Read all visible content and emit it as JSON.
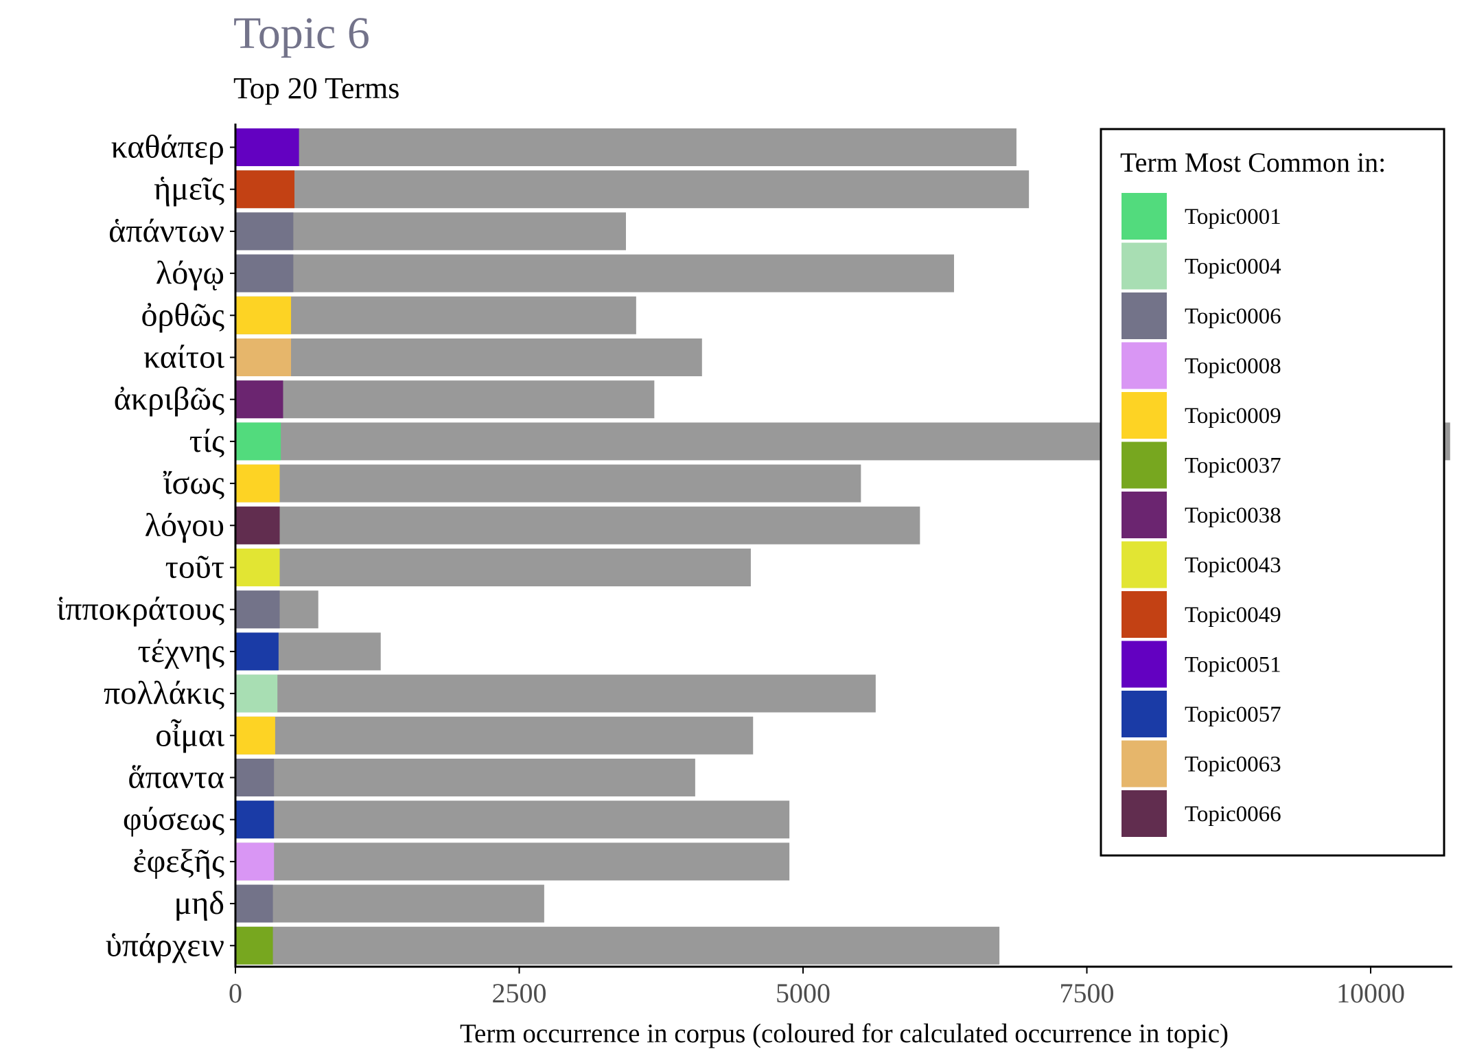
{
  "chart_data": {
    "type": "bar",
    "orientation": "horizontal",
    "title": "Topic 6",
    "subtitle": "Top 20 Terms",
    "xlabel": "Term occurrence in corpus (coloured for calculated occurrence in topic)",
    "ylabel": "",
    "xlim": [
      0,
      10700
    ],
    "x_ticks": [
      0,
      2500,
      5000,
      7500,
      10000
    ],
    "x_tick_labels": [
      "0",
      "2500",
      "5000",
      "7500",
      "10000"
    ],
    "grid": false,
    "legend": {
      "title": "Term Most Common in:",
      "placement": "top-right",
      "entries": [
        {
          "label": "Topic0001",
          "color": "#52DB7D"
        },
        {
          "label": "Topic0004",
          "color": "#A8DEB3"
        },
        {
          "label": "Topic0006",
          "color": "#737389"
        },
        {
          "label": "Topic0008",
          "color": "#D996F4"
        },
        {
          "label": "Topic0009",
          "color": "#FDD324"
        },
        {
          "label": "Topic0037",
          "color": "#77A71F"
        },
        {
          "label": "Topic0038",
          "color": "#6B2570"
        },
        {
          "label": "Topic0043",
          "color": "#E2E533"
        },
        {
          "label": "Topic0049",
          "color": "#C34114"
        },
        {
          "label": "Topic0051",
          "color": "#6301C1"
        },
        {
          "label": "Topic0057",
          "color": "#1A3BA6"
        },
        {
          "label": "Topic0063",
          "color": "#E6B66B"
        },
        {
          "label": "Topic0066",
          "color": "#612D4F"
        }
      ]
    },
    "series": [
      {
        "name": "corpus",
        "color": "#999999"
      }
    ],
    "categories": [
      "καθάπερ",
      "ἡμεῖς",
      "ἁπάντων",
      "λόγῳ",
      "ὀρθῶς",
      "καίτοι",
      "ἀκριβῶς",
      "τίς",
      "ἴσως",
      "λόγου",
      "τοῦτ",
      "ἱπποκράτους",
      "τέχνης",
      "πολλάκις",
      "οἶμαι",
      "ἅπαντα",
      "φύσεως",
      "ἐφεξῆς",
      "μηδ",
      "ὑπάρχειν"
    ],
    "bars": [
      {
        "term": "καθάπερ",
        "corpus": 6880,
        "topic": 560,
        "topic_label": "Topic0051"
      },
      {
        "term": "ἡμεῖς",
        "corpus": 6990,
        "topic": 520,
        "topic_label": "Topic0049"
      },
      {
        "term": "ἁπάντων",
        "corpus": 3440,
        "topic": 510,
        "topic_label": "Topic0006"
      },
      {
        "term": "λόγῳ",
        "corpus": 6330,
        "topic": 510,
        "topic_label": "Topic0006"
      },
      {
        "term": "ὀρθῶς",
        "corpus": 3530,
        "topic": 490,
        "topic_label": "Topic0009"
      },
      {
        "term": "καίτοι",
        "corpus": 4110,
        "topic": 490,
        "topic_label": "Topic0063"
      },
      {
        "term": "ἀκριβῶς",
        "corpus": 3690,
        "topic": 420,
        "topic_label": "Topic0038"
      },
      {
        "term": "τίς",
        "corpus": 10700,
        "topic": 400,
        "topic_label": "Topic0001"
      },
      {
        "term": "ἴσως",
        "corpus": 5510,
        "topic": 390,
        "topic_label": "Topic0009"
      },
      {
        "term": "λόγου",
        "corpus": 6030,
        "topic": 390,
        "topic_label": "Topic0066"
      },
      {
        "term": "τοῦτ",
        "corpus": 4540,
        "topic": 390,
        "topic_label": "Topic0043"
      },
      {
        "term": "ἱπποκράτους",
        "corpus": 730,
        "topic": 390,
        "topic_label": "Topic0006"
      },
      {
        "term": "τέχνης",
        "corpus": 1280,
        "topic": 380,
        "topic_label": "Topic0057"
      },
      {
        "term": "πολλάκις",
        "corpus": 5640,
        "topic": 370,
        "topic_label": "Topic0004"
      },
      {
        "term": "οἶμαι",
        "corpus": 4560,
        "topic": 350,
        "topic_label": "Topic0009"
      },
      {
        "term": "ἅπαντα",
        "corpus": 4050,
        "topic": 340,
        "topic_label": "Topic0006"
      },
      {
        "term": "φύσεως",
        "corpus": 4880,
        "topic": 340,
        "topic_label": "Topic0057"
      },
      {
        "term": "ἐφεξῆς",
        "corpus": 4880,
        "topic": 340,
        "topic_label": "Topic0008"
      },
      {
        "term": "μηδ",
        "corpus": 2720,
        "topic": 330,
        "topic_label": "Topic0006"
      },
      {
        "term": "ὑπάρχειν",
        "corpus": 6730,
        "topic": 330,
        "topic_label": "Topic0037"
      }
    ]
  }
}
